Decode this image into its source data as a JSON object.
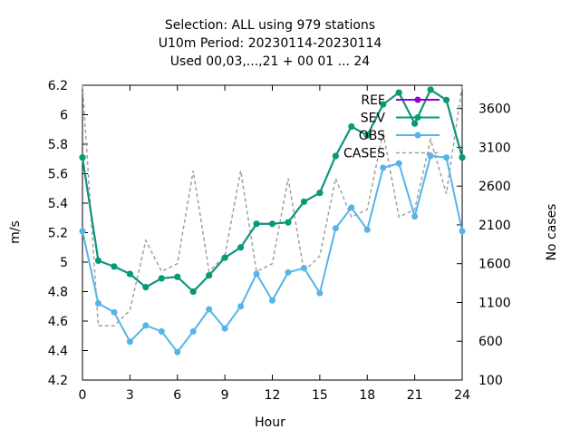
{
  "title_lines": [
    "Selection: ALL using   979 stations",
    "U10m   Period: 20230114-20230114",
    "Used  00,03,...,21  + 00 01 ... 24"
  ],
  "chart_data": {
    "type": "line",
    "xlabel": "Hour",
    "ylabel": "m/s",
    "y2label": "No cases",
    "xlim": [
      0,
      24
    ],
    "ylim": [
      4.2,
      6.2
    ],
    "y2lim": [
      100,
      3900
    ],
    "xticks": [
      0,
      3,
      6,
      9,
      12,
      15,
      18,
      21,
      24
    ],
    "yticks": [
      4.2,
      4.4,
      4.6,
      4.8,
      5.0,
      5.2,
      5.4,
      5.6,
      5.8,
      6.0,
      6.2
    ],
    "ytick_labels": [
      "4.2",
      "4.4",
      "4.6",
      "4.8",
      "5",
      "5.2",
      "5.4",
      "5.6",
      "5.8",
      "6",
      "6.2"
    ],
    "y2ticks": [
      100,
      600,
      1100,
      1600,
      2100,
      2600,
      3100,
      3600
    ],
    "legend_position": "top-right",
    "grid": false,
    "x": [
      0,
      1,
      2,
      3,
      4,
      5,
      6,
      7,
      8,
      9,
      10,
      11,
      12,
      13,
      14,
      15,
      16,
      17,
      18,
      19,
      20,
      21,
      22,
      23,
      24
    ],
    "series": [
      {
        "name": "REF",
        "color": "#9400d3",
        "axis": "y",
        "style": "line-points",
        "values": [
          5.71,
          5.01,
          4.97,
          4.92,
          4.83,
          4.89,
          4.9,
          4.8,
          4.91,
          5.03,
          5.1,
          5.26,
          5.26,
          5.27,
          5.41,
          5.47,
          5.72,
          5.92,
          5.86,
          6.07,
          6.15,
          5.94,
          6.17,
          6.1,
          5.71
        ]
      },
      {
        "name": "SEV",
        "color": "#009e73",
        "axis": "y",
        "style": "line-points",
        "values": [
          5.71,
          5.01,
          4.97,
          4.92,
          4.83,
          4.89,
          4.9,
          4.8,
          4.91,
          5.03,
          5.1,
          5.26,
          5.26,
          5.27,
          5.41,
          5.47,
          5.72,
          5.92,
          5.86,
          6.07,
          6.15,
          5.94,
          6.17,
          6.1,
          5.71
        ]
      },
      {
        "name": "OBS",
        "color": "#56b4e9",
        "axis": "y",
        "style": "line-points",
        "values": [
          5.21,
          4.72,
          4.66,
          4.46,
          4.57,
          4.53,
          4.39,
          4.53,
          4.68,
          4.55,
          4.7,
          4.92,
          4.74,
          4.93,
          4.96,
          4.79,
          5.23,
          5.37,
          5.22,
          5.64,
          5.67,
          5.31,
          5.72,
          5.71,
          5.21
        ]
      },
      {
        "name": "CASES",
        "color": "#a0a0a0",
        "axis": "y2",
        "style": "dashed",
        "values": [
          3900,
          800,
          800,
          1000,
          1900,
          1500,
          1600,
          2800,
          1500,
          1700,
          2800,
          1500,
          1600,
          2700,
          1500,
          1700,
          2700,
          2200,
          2300,
          3300,
          2200,
          2300,
          3200,
          2500,
          3900
        ]
      }
    ]
  }
}
